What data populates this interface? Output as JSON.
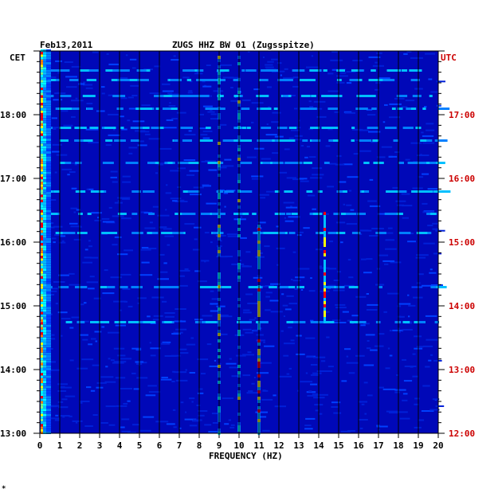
{
  "header": {
    "date": "Feb13,2011",
    "station": "ZUGS HHZ BW 01 (Zugsspitze)",
    "left_tz": "CET",
    "right_tz": "UTC"
  },
  "footnote": "*",
  "colors": {
    "background": "#0008b8",
    "grid": "#000000",
    "left_axis_text": "#000000",
    "right_axis_text": "#cc0000",
    "peak_yellow": "#ffff00",
    "peak_red": "#ff0000",
    "mid_cyan": "#00ffff"
  },
  "chart_data": {
    "type": "heatmap",
    "title": "ZUGS HHZ BW 01 (Zugsspitze)",
    "xlabel": "FREQUENCY (HZ)",
    "ylabel_left": "CET",
    "ylabel_right": "UTC",
    "xlim": [
      0,
      20
    ],
    "x_ticks": [
      "0",
      "1",
      "2",
      "3",
      "4",
      "5",
      "6",
      "7",
      "8",
      "9",
      "10",
      "11",
      "12",
      "13",
      "14",
      "15",
      "16",
      "17",
      "18",
      "19",
      "20"
    ],
    "y_ticks_left": [
      "18:00",
      "17:00",
      "16:00",
      "15:00",
      "14:00",
      "13:00"
    ],
    "y_ticks_right": [
      "17:00",
      "16:00",
      "15:00",
      "14:00",
      "13:00",
      "12:00"
    ],
    "y_tick_hours_cet": [
      18,
      17,
      16,
      15,
      14,
      13
    ],
    "time_range_cet_hours": [
      13.0,
      19.0
    ],
    "grid": true,
    "features": [
      {
        "description": "strong low-frequency noise",
        "freq_hz": [
          0.0,
          0.6
        ],
        "time_cet": [
          13.0,
          19.0
        ],
        "intensity": "high"
      },
      {
        "description": "spectral line",
        "freq_hz": 9.0,
        "time_cet": [
          13.0,
          19.0
        ],
        "intensity": "medium"
      },
      {
        "description": "spectral line",
        "freq_hz": 10.0,
        "time_cet": [
          13.0,
          19.0
        ],
        "intensity": "medium"
      },
      {
        "description": "spectral line",
        "freq_hz": 11.0,
        "time_cet": [
          13.0,
          16.3
        ],
        "intensity": "high"
      },
      {
        "description": "intermittent line",
        "freq_hz": 14.3,
        "time_cet": [
          14.7,
          16.5
        ],
        "intensity": "high"
      }
    ]
  }
}
